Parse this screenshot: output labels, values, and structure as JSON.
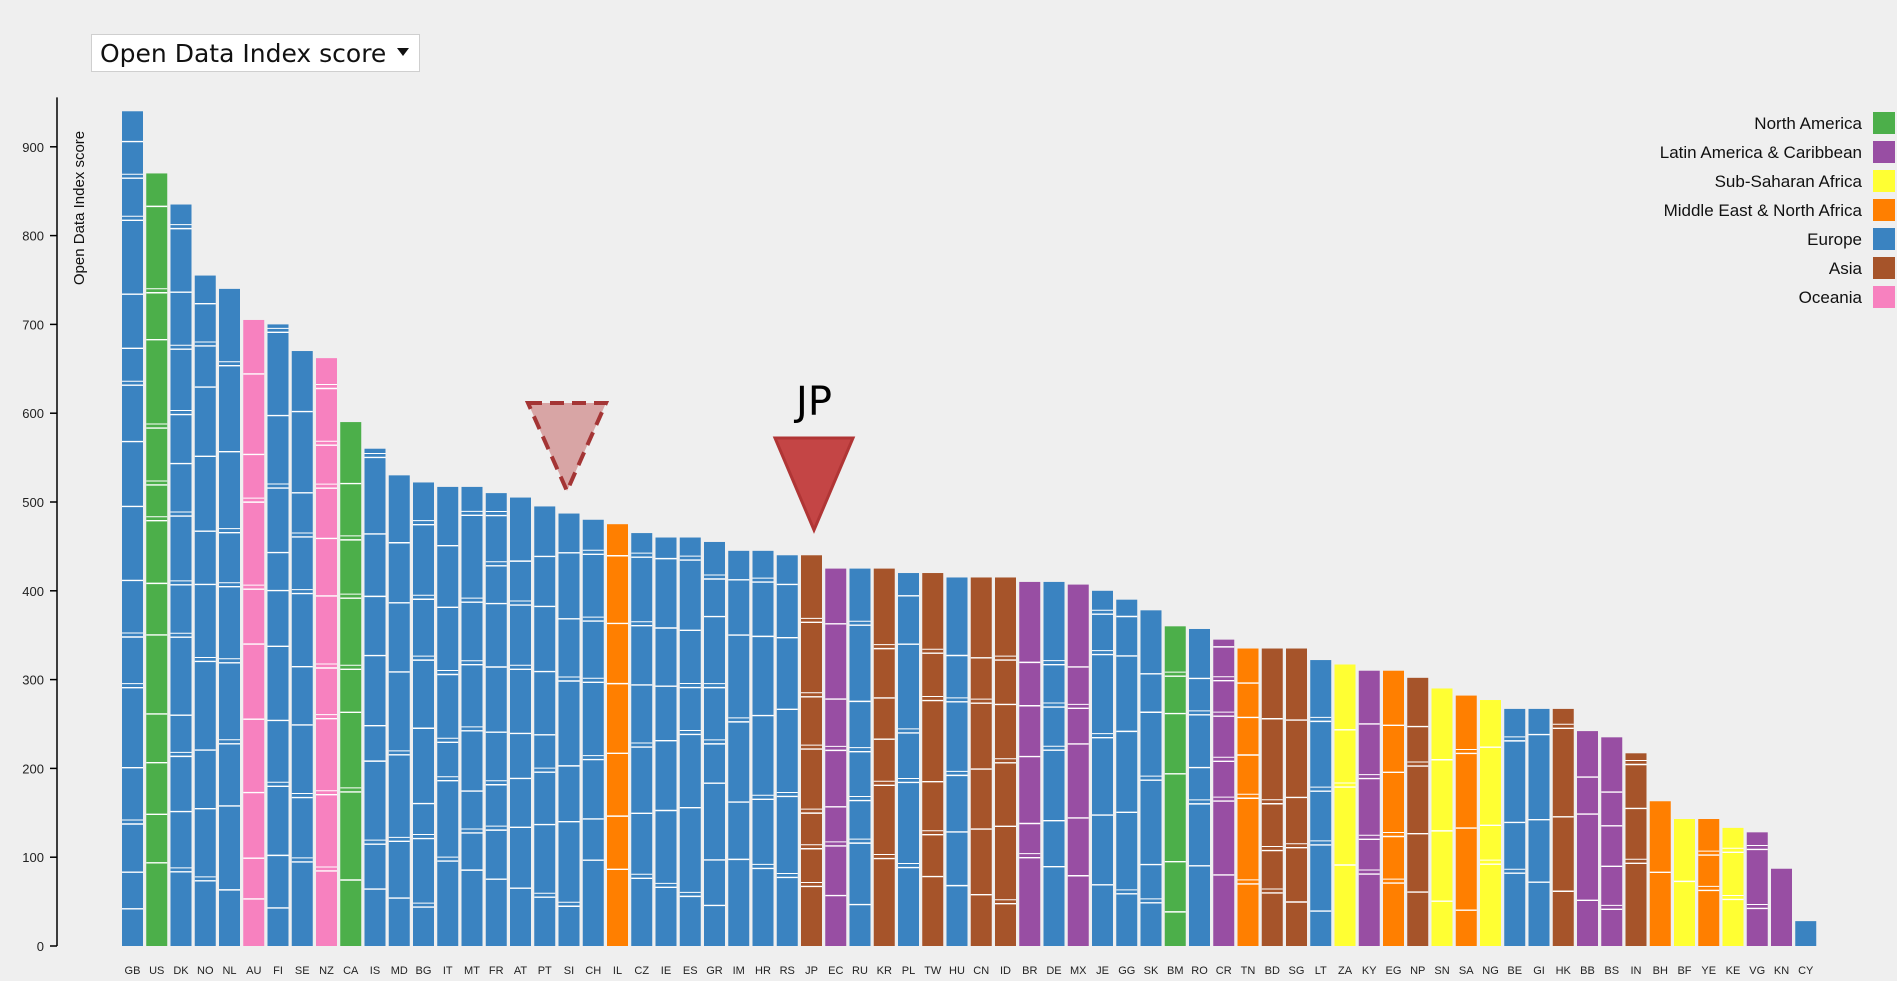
{
  "controls": {
    "metric_select": "Open Data Index score"
  },
  "annotation": {
    "highlight_label": "JP"
  },
  "chart_data": {
    "type": "bar",
    "title": "",
    "ylabel": "Open Data Index score",
    "xlabel": "",
    "ylim": [
      0,
      950
    ],
    "yticks": [
      0,
      100,
      200,
      300,
      400,
      500,
      600,
      700,
      800,
      900
    ],
    "stacked_segments": true,
    "legend_position": "top-right",
    "legend": [
      {
        "name": "North America",
        "color": "#4caf4a"
      },
      {
        "name": "Latin America & Caribbean",
        "color": "#984ea3"
      },
      {
        "name": "Sub-Saharan Africa",
        "color": "#ffff33"
      },
      {
        "name": "Middle East & North Africa",
        "color": "#ff7f00"
      },
      {
        "name": "Europe",
        "color": "#3a83c1"
      },
      {
        "name": "Asia",
        "color": "#a6542a"
      },
      {
        "name": "Oceania",
        "color": "#f781bf"
      }
    ],
    "categories": [
      "GB",
      "US",
      "DK",
      "NO",
      "NL",
      "AU",
      "FI",
      "SE",
      "NZ",
      "CA",
      "IS",
      "MD",
      "BG",
      "IT",
      "MT",
      "FR",
      "AT",
      "PT",
      "SI",
      "CH",
      "IL",
      "CZ",
      "IE",
      "ES",
      "GR",
      "IM",
      "HR",
      "RS",
      "JP",
      "EC",
      "RU",
      "KR",
      "PL",
      "TW",
      "HU",
      "CN",
      "ID",
      "BR",
      "DE",
      "MX",
      "JE",
      "GG",
      "SK",
      "BM",
      "RO",
      "CR",
      "TN",
      "BD",
      "SG",
      "LT",
      "ZA",
      "KY",
      "EG",
      "NP",
      "SN",
      "SA",
      "NG",
      "BE",
      "GI",
      "HK",
      "BB",
      "BS",
      "IN",
      "BH",
      "BF",
      "YE",
      "KE",
      "VG",
      "KN",
      "CY"
    ],
    "values": [
      940,
      870,
      835,
      755,
      740,
      705,
      700,
      670,
      662,
      590,
      560,
      530,
      522,
      517,
      517,
      510,
      505,
      495,
      487,
      480,
      475,
      465,
      460,
      460,
      455,
      445,
      445,
      440,
      440,
      425,
      425,
      425,
      420,
      420,
      415,
      415,
      415,
      410,
      410,
      407,
      400,
      390,
      378,
      360,
      357,
      345,
      335,
      335,
      335,
      322,
      317,
      310,
      310,
      302,
      290,
      282,
      277,
      267,
      267,
      267,
      242,
      235,
      217,
      163,
      143,
      143,
      133,
      128,
      87,
      28
    ],
    "regions": [
      "Europe",
      "North America",
      "Europe",
      "Europe",
      "Europe",
      "Oceania",
      "Europe",
      "Europe",
      "Oceania",
      "North America",
      "Europe",
      "Europe",
      "Europe",
      "Europe",
      "Europe",
      "Europe",
      "Europe",
      "Europe",
      "Europe",
      "Europe",
      "Middle East & North Africa",
      "Europe",
      "Europe",
      "Europe",
      "Europe",
      "Europe",
      "Europe",
      "Europe",
      "Asia",
      "Latin America & Caribbean",
      "Europe",
      "Asia",
      "Europe",
      "Asia",
      "Europe",
      "Asia",
      "Asia",
      "Latin America & Caribbean",
      "Europe",
      "Latin America & Caribbean",
      "Europe",
      "Europe",
      "Europe",
      "North America",
      "Europe",
      "Latin America & Caribbean",
      "Middle East & North Africa",
      "Asia",
      "Asia",
      "Europe",
      "Sub-Saharan Africa",
      "Latin America & Caribbean",
      "Middle East & North Africa",
      "Asia",
      "Sub-Saharan Africa",
      "Middle East & North Africa",
      "Sub-Saharan Africa",
      "Europe",
      "Europe",
      "Asia",
      "Latin America & Caribbean",
      "Latin America & Caribbean",
      "Asia",
      "Middle East & North Africa",
      "Sub-Saharan Africa",
      "Middle East & North Africa",
      "Sub-Saharan Africa",
      "Latin America & Caribbean",
      "Latin America & Caribbean",
      "Europe"
    ],
    "highlighted_category": "JP"
  }
}
